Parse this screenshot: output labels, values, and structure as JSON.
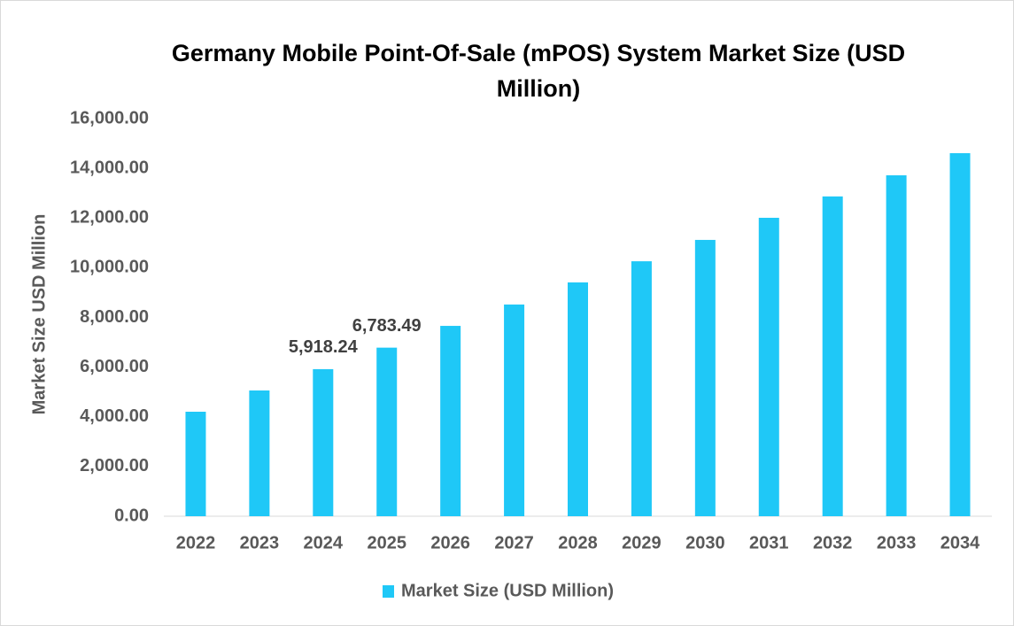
{
  "chart_data": {
    "type": "bar",
    "title": "Germany Mobile Point-Of-Sale (mPOS) System Market Size (USD Million)",
    "y_label": "Market Size USD Million",
    "categories": [
      "2022",
      "2023",
      "2024",
      "2025",
      "2026",
      "2027",
      "2028",
      "2029",
      "2030",
      "2031",
      "2032",
      "2033",
      "2034"
    ],
    "series": [
      {
        "name": "Market Size (USD Million)",
        "color": "#1fc8f7",
        "values": [
          4205,
          5060,
          5918.24,
          6783.49,
          7660,
          8520,
          9410,
          10260,
          11120,
          12010,
          12870,
          13720,
          14610
        ],
        "value_labels": [
          null,
          null,
          "5,918.24",
          "6,783.49",
          null,
          null,
          null,
          null,
          null,
          null,
          null,
          null,
          null
        ]
      }
    ],
    "ylim": [
      0,
      16000
    ],
    "yticks": [
      {
        "value": 0,
        "label": "0.00"
      },
      {
        "value": 2000,
        "label": "2,000.00"
      },
      {
        "value": 4000,
        "label": "4,000.00"
      },
      {
        "value": 6000,
        "label": "6,000.00"
      },
      {
        "value": 8000,
        "label": "8,000.00"
      },
      {
        "value": 10000,
        "label": "10,000.00"
      },
      {
        "value": 12000,
        "label": "12,000.00"
      },
      {
        "value": 14000,
        "label": "14,000.00"
      },
      {
        "value": 16000,
        "label": "16,000.00"
      }
    ],
    "grid": false,
    "legend": "bottom"
  }
}
